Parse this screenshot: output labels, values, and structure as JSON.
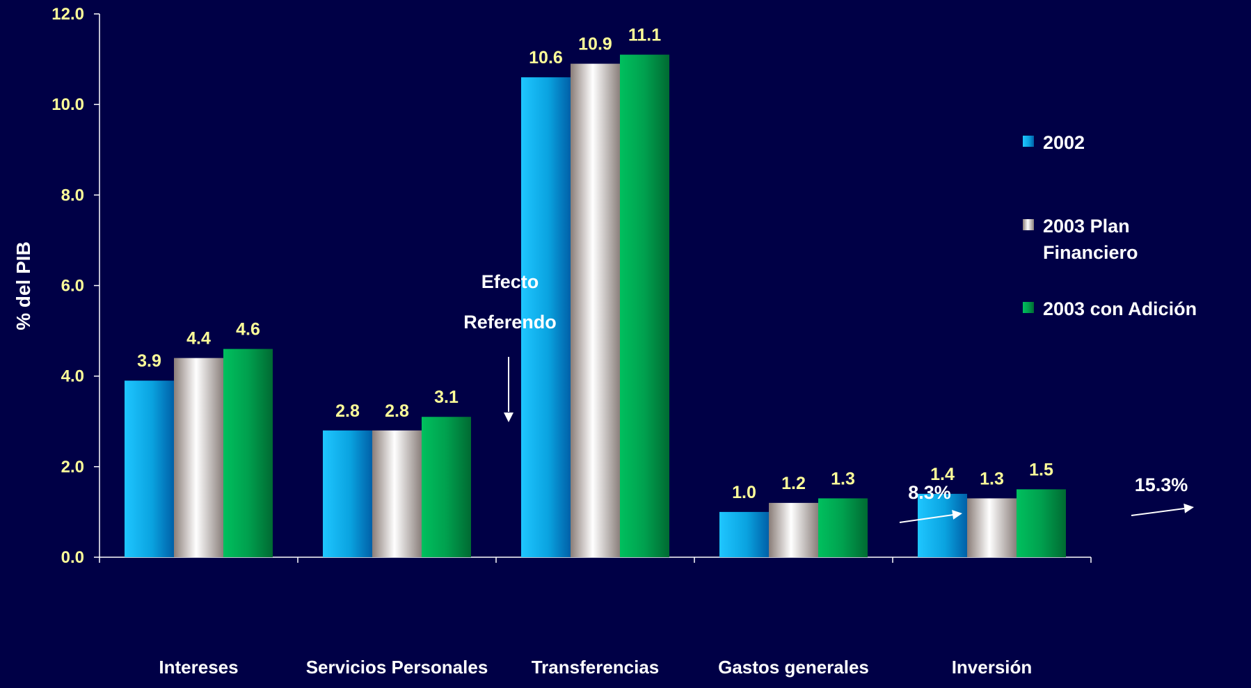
{
  "chart_data": {
    "type": "bar",
    "ylabel": "% del PIB",
    "ylim": [
      0,
      12
    ],
    "yticks": [
      "0.0",
      "2.0",
      "4.0",
      "6.0",
      "8.0",
      "10.0",
      "12.0"
    ],
    "categories": [
      "Intereses",
      "Servicios Personales",
      "Transferencias",
      "Gastos generales",
      "Inversión"
    ],
    "series": [
      {
        "name": "2002",
        "values": [
          3.9,
          2.8,
          10.6,
          1.0,
          1.4
        ],
        "labels": [
          "3.9",
          "2.8",
          "10.6",
          "1.0",
          "1.4"
        ],
        "color": "#0099d8"
      },
      {
        "name": "2003 Plan Financiero",
        "values": [
          4.4,
          2.8,
          10.9,
          1.2,
          1.3
        ],
        "labels": [
          "4.4",
          "2.8",
          "10.9",
          "1.2",
          "1.3"
        ],
        "color": "#c8bfbc"
      },
      {
        "name": "2003 con Adición",
        "values": [
          4.6,
          3.1,
          11.1,
          1.3,
          1.5
        ],
        "labels": [
          "4.6",
          "3.1",
          "11.1",
          "1.3",
          "1.5"
        ],
        "color": "#00994a"
      }
    ],
    "legend": {
      "position": "right",
      "lines": [
        [
          "2002"
        ],
        [
          "2003 Plan",
          "Financiero"
        ],
        [
          "2003 con Adición"
        ]
      ]
    },
    "annotations": [
      {
        "category": "Servicios Personales",
        "lines": [
          "Efecto",
          "Referendo"
        ]
      },
      {
        "category": "Gastos generales",
        "text": "8.3%"
      },
      {
        "category": "Inversión",
        "text": "15.3%"
      }
    ],
    "colors": {
      "background": "#000046",
      "axis": "#ffffff",
      "value_label": "#ffff99",
      "text": "#ffffff"
    }
  }
}
